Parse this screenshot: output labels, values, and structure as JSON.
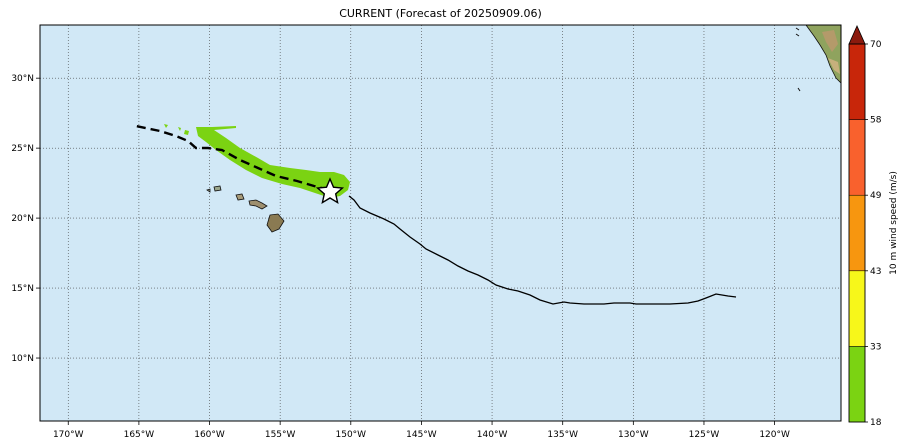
{
  "title": "CURRENT (Forecast of 20250909.06)",
  "map": {
    "ocean_color": "#d1e8f6",
    "grid_color": "#444444",
    "lon_labels": [
      "170°W",
      "165°W",
      "160°W",
      "155°W",
      "150°W",
      "145°W",
      "140°W",
      "135°W",
      "130°W",
      "125°W",
      "120°W"
    ],
    "lat_labels": [
      "30°N",
      "25°N",
      "20°N",
      "15°N",
      "10°N"
    ],
    "lon_range": [
      -172,
      -115.3
    ],
    "lat_range": [
      5.5,
      33.8
    ]
  },
  "track": {
    "past_line": "solid",
    "forecast_line": "dashed",
    "current_position_marker": "star-icon",
    "current_position": {
      "lon": -151.5,
      "lat": 21.8
    }
  },
  "colorbar": {
    "label": "10 m wind speed (m/s)",
    "ticks": [
      "18",
      "33",
      "43",
      "49",
      "58",
      "70"
    ],
    "colors": [
      "#7bd312",
      "#f7f71a",
      "#f7960f",
      "#f9612d",
      "#c8260a"
    ],
    "extend_color": "#8b1a0e"
  }
}
